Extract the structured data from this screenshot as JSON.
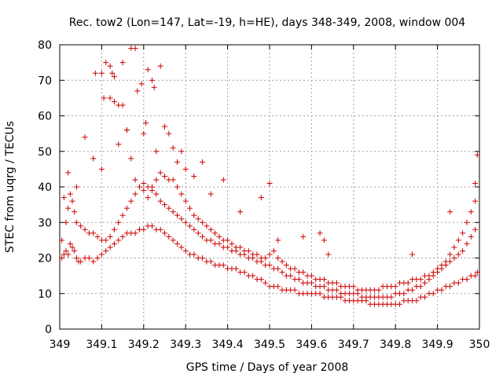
{
  "chart_data": {
    "type": "scatter",
    "title": "Rec. tow2 (Lon=147, Lat=-19, h=HE), days 348-349, 2008, window 004",
    "xlabel": "GPS time / Days of year 2008",
    "ylabel": "STEC from uqrg / TECUs",
    "xlim": [
      349,
      350
    ],
    "ylim": [
      0,
      80
    ],
    "xticks": [
      "349",
      "349.1",
      "349.2",
      "349.3",
      "349.4",
      "349.5",
      "349.6",
      "349.7",
      "349.8",
      "349.9",
      "350"
    ],
    "yticks": [
      "0",
      "10",
      "20",
      "30",
      "40",
      "50",
      "60",
      "70",
      "80"
    ],
    "grid": true,
    "marker": "plus",
    "color": "#cc0000",
    "series": [
      {
        "x": [
          349.005,
          349.005,
          349.01,
          349.015,
          349.02,
          349.025,
          349.03,
          349.035,
          349.04,
          349.045,
          349.05,
          349.06,
          349.07,
          349.08,
          349.09,
          349.1,
          349.11,
          349.12,
          349.13,
          349.14,
          349.15,
          349.16,
          349.17,
          349.18,
          349.19,
          349.2,
          349.21,
          349.22,
          349.23,
          349.24,
          349.25,
          349.26,
          349.27,
          349.28,
          349.29,
          349.3,
          349.31,
          349.32,
          349.33,
          349.34,
          349.35,
          349.36,
          349.37,
          349.38,
          349.39,
          349.4,
          349.41,
          349.42,
          349.43,
          349.44,
          349.45,
          349.46,
          349.47,
          349.48,
          349.49,
          349.5,
          349.51,
          349.52,
          349.53,
          349.54,
          349.55,
          349.56,
          349.57,
          349.58,
          349.59,
          349.6,
          349.61,
          349.62,
          349.63,
          349.64,
          349.65,
          349.66,
          349.67,
          349.68,
          349.69,
          349.7,
          349.71,
          349.72,
          349.73,
          349.74,
          349.75,
          349.76,
          349.77,
          349.78,
          349.79,
          349.8,
          349.81,
          349.82,
          349.83,
          349.84,
          349.85,
          349.86,
          349.87,
          349.88,
          349.89,
          349.9,
          349.91,
          349.92,
          349.93,
          349.94,
          349.95,
          349.96,
          349.97,
          349.98,
          349.99,
          349.995
        ],
        "y": [
          20,
          25,
          21,
          22,
          21,
          24,
          23,
          22,
          20,
          19,
          19,
          20,
          20,
          19,
          20,
          21,
          22,
          23,
          24,
          25,
          26,
          27,
          27,
          27,
          28,
          28,
          29,
          29,
          28,
          28,
          27,
          26,
          25,
          24,
          23,
          22,
          21,
          21,
          20,
          20,
          19,
          19,
          18,
          18,
          18,
          17,
          17,
          17,
          16,
          16,
          15,
          15,
          14,
          14,
          13,
          12,
          12,
          12,
          11,
          11,
          11,
          11,
          10,
          10,
          10,
          10,
          10,
          10,
          9,
          9,
          9,
          9,
          9,
          8,
          8,
          8,
          8,
          8,
          8,
          7,
          7,
          7,
          7,
          7,
          7,
          7,
          7,
          8,
          8,
          8,
          8,
          9,
          9,
          10,
          10,
          11,
          11,
          12,
          12,
          13,
          13,
          14,
          14,
          15,
          15,
          16
        ]
      },
      {
        "x": [
          349.01,
          349.015,
          349.02,
          349.025,
          349.03,
          349.035,
          349.04,
          349.05,
          349.06,
          349.07,
          349.08,
          349.09,
          349.1,
          349.11,
          349.12,
          349.13,
          349.14,
          349.15,
          349.16,
          349.17,
          349.18,
          349.19,
          349.2,
          349.21,
          349.22,
          349.23,
          349.24,
          349.25,
          349.26,
          349.27,
          349.28,
          349.29,
          349.3,
          349.31,
          349.32,
          349.33,
          349.34,
          349.35,
          349.36,
          349.37,
          349.38,
          349.39,
          349.4,
          349.41,
          349.42,
          349.43,
          349.44,
          349.45,
          349.46,
          349.47,
          349.48,
          349.49,
          349.5,
          349.51,
          349.52,
          349.53,
          349.54,
          349.55,
          349.56,
          349.57,
          349.58,
          349.59,
          349.6,
          349.61,
          349.62,
          349.63,
          349.64,
          349.65,
          349.66,
          349.67,
          349.68,
          349.69,
          349.7,
          349.71,
          349.72,
          349.73,
          349.74,
          349.75,
          349.76,
          349.77,
          349.78,
          349.79,
          349.8,
          349.81,
          349.82,
          349.83,
          349.84,
          349.85,
          349.86,
          349.87,
          349.88,
          349.89,
          349.9,
          349.91,
          349.92,
          349.93,
          349.94,
          349.95,
          349.96,
          349.97,
          349.98,
          349.99
        ],
        "y": [
          37,
          30,
          34,
          38,
          36,
          33,
          30,
          29,
          28,
          27,
          27,
          26,
          25,
          25,
          26,
          28,
          30,
          32,
          34,
          36,
          38,
          40,
          41,
          40,
          39,
          38,
          36,
          35,
          34,
          33,
          32,
          31,
          30,
          29,
          28,
          27,
          26,
          25,
          25,
          24,
          24,
          23,
          23,
          22,
          22,
          21,
          21,
          20,
          20,
          19,
          19,
          18,
          18,
          17,
          17,
          16,
          15,
          15,
          14,
          14,
          13,
          13,
          13,
          12,
          12,
          12,
          11,
          11,
          11,
          10,
          10,
          10,
          10,
          10,
          9,
          9,
          9,
          9,
          9,
          9,
          9,
          9,
          10,
          10,
          10,
          11,
          11,
          12,
          12,
          13,
          14,
          15,
          16,
          17,
          18,
          19,
          20,
          21,
          22,
          24,
          26,
          28
        ]
      },
      {
        "x": [
          349.02,
          349.04,
          349.06,
          349.08,
          349.1,
          349.12,
          349.13,
          349.14,
          349.15,
          349.16,
          349.17,
          349.18,
          349.19,
          349.2,
          349.21,
          349.22,
          349.23,
          349.24,
          349.25,
          349.26,
          349.27,
          349.28,
          349.29,
          349.3,
          349.31,
          349.32,
          349.33,
          349.34,
          349.35,
          349.36,
          349.37,
          349.38,
          349.39,
          349.4,
          349.41,
          349.42,
          349.43,
          349.44,
          349.45,
          349.46,
          349.47,
          349.48,
          349.49,
          349.5,
          349.51,
          349.52,
          349.53,
          349.54,
          349.55,
          349.56,
          349.57,
          349.58,
          349.59,
          349.6,
          349.61,
          349.62,
          349.63,
          349.64,
          349.65,
          349.66,
          349.67,
          349.68,
          349.69,
          349.7,
          349.71,
          349.72,
          349.73,
          349.74,
          349.75,
          349.76,
          349.77,
          349.78,
          349.79,
          349.8,
          349.81,
          349.82,
          349.83,
          349.84,
          349.85,
          349.86,
          349.87,
          349.88,
          349.89,
          349.9,
          349.91,
          349.92,
          349.93,
          349.94,
          349.95,
          349.96,
          349.97,
          349.98,
          349.99
        ],
        "y": [
          44,
          40,
          54,
          48,
          45,
          65,
          64,
          63,
          63,
          56,
          48,
          42,
          40,
          39,
          37,
          40,
          42,
          44,
          43,
          42,
          42,
          40,
          38,
          36,
          34,
          32,
          31,
          30,
          29,
          28,
          27,
          26,
          25,
          25,
          24,
          23,
          23,
          22,
          22,
          21,
          21,
          20,
          20,
          21,
          22,
          20,
          19,
          18,
          17,
          17,
          16,
          16,
          15,
          15,
          14,
          14,
          14,
          13,
          13,
          13,
          12,
          12,
          12,
          12,
          11,
          11,
          11,
          11,
          11,
          11,
          12,
          12,
          12,
          12,
          13,
          13,
          13,
          14,
          14,
          14,
          15,
          15,
          16,
          17,
          18,
          19,
          21,
          23,
          25,
          27,
          30,
          33,
          36
        ]
      },
      {
        "x": [
          349.085,
          349.1,
          349.105,
          349.11,
          349.12,
          349.125,
          349.13,
          349.14,
          349.15,
          349.16,
          349.17,
          349.18,
          349.185,
          349.195,
          349.2,
          349.205,
          349.21,
          349.22,
          349.225,
          349.23,
          349.24,
          349.25,
          349.26,
          349.27,
          349.28,
          349.29,
          349.3,
          349.32,
          349.34,
          349.36,
          349.39,
          349.43,
          349.48,
          349.5,
          349.52,
          349.58,
          349.62,
          349.63,
          349.64,
          349.84,
          349.93,
          349.99,
          349.995
        ],
        "y": [
          72,
          72,
          65,
          75,
          74,
          72,
          71,
          52,
          75,
          56,
          79,
          79,
          67,
          69,
          55,
          58,
          73,
          70,
          68,
          50,
          74,
          57,
          55,
          51,
          47,
          50,
          45,
          43,
          47,
          38,
          42,
          33,
          37,
          41,
          25,
          26,
          27,
          25,
          21,
          21,
          33,
          41,
          49
        ]
      }
    ]
  }
}
